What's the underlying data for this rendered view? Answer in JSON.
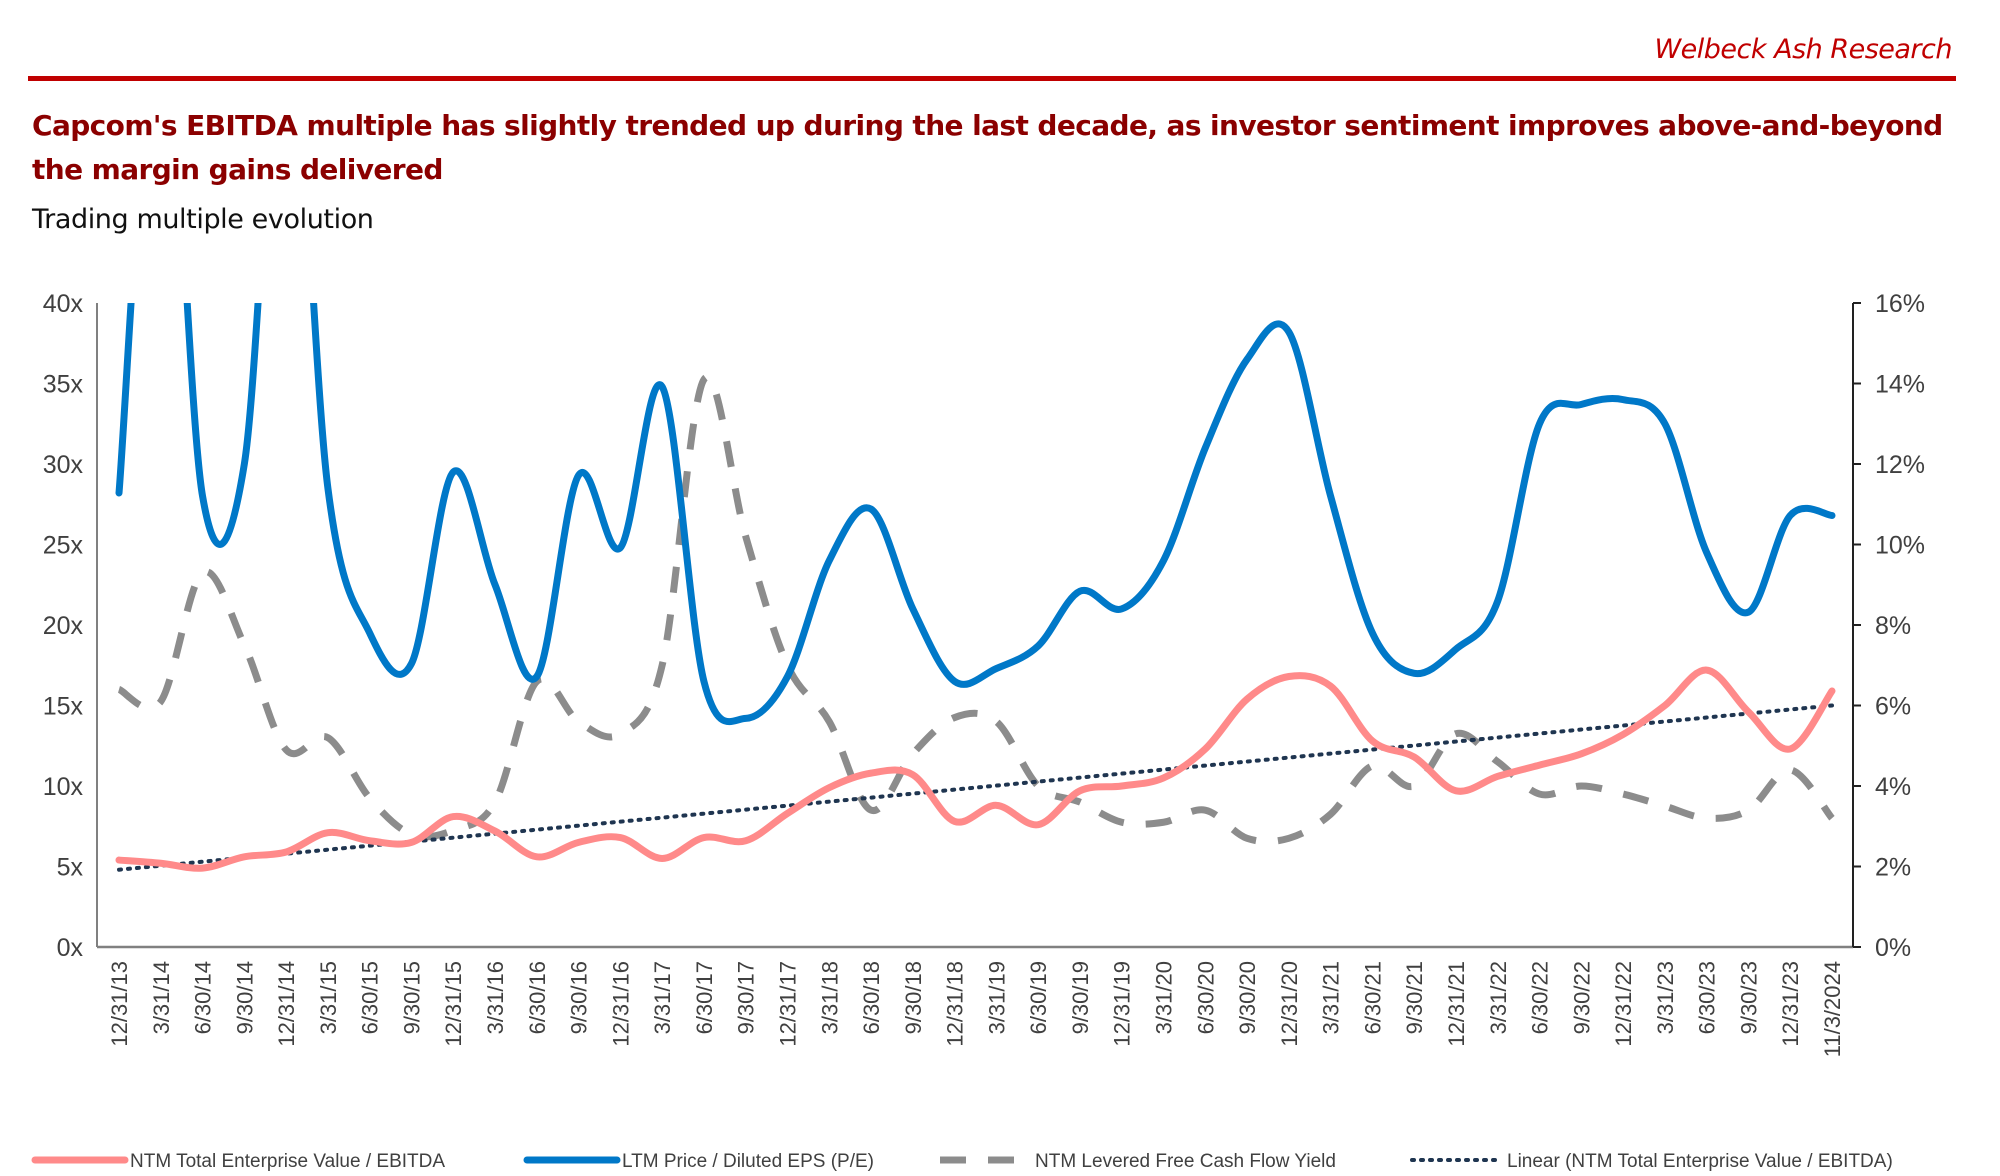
{
  "header": {
    "brand": "Welbeck Ash Research",
    "headline": "Capcom's EBITDA multiple has slightly trended up during the last decade, as investor sentiment improves above-and-beyond the margin gains delivered",
    "subtitle": "Trading multiple evolution"
  },
  "colors": {
    "brand": "#c00000",
    "headline": "#8b0000",
    "ev_ebitda": "#ff8a8a",
    "pe": "#0078c8",
    "fcf_yield": "#8c8c8c",
    "trend": "#1f3550"
  },
  "chart_data": {
    "type": "line",
    "title": "Trading multiple evolution",
    "xlabel": "",
    "ylabel": "",
    "y2label": "",
    "ylim": [
      0,
      40
    ],
    "y2lim": [
      0,
      16
    ],
    "yticks": [
      "0x",
      "5x",
      "10x",
      "15x",
      "20x",
      "25x",
      "30x",
      "35x",
      "40x"
    ],
    "y2ticks": [
      "0%",
      "2%",
      "4%",
      "6%",
      "8%",
      "10%",
      "12%",
      "14%",
      "16%"
    ],
    "grid": false,
    "legend_position": "bottom",
    "categories": [
      "12/31/13",
      "3/31/14",
      "6/30/14",
      "9/30/14",
      "12/31/14",
      "3/31/15",
      "6/30/15",
      "9/30/15",
      "12/31/15",
      "3/31/16",
      "6/30/16",
      "9/30/16",
      "12/31/16",
      "3/31/17",
      "6/30/17",
      "9/30/17",
      "12/31/17",
      "3/31/18",
      "6/30/18",
      "9/30/18",
      "12/31/18",
      "3/31/19",
      "6/30/19",
      "9/30/19",
      "12/31/19",
      "3/31/20",
      "6/30/20",
      "9/30/20",
      "12/31/20",
      "3/31/21",
      "6/30/21",
      "9/30/21",
      "12/31/21",
      "3/31/22",
      "6/30/22",
      "9/30/22",
      "12/31/22",
      "3/31/23",
      "6/30/23",
      "9/30/23",
      "12/31/23",
      "11/3/2024"
    ],
    "series": [
      {
        "name": "NTM Total Enterprise Value / EBITDA",
        "axis": "left",
        "style": "solid",
        "values": [
          5.4,
          5.2,
          4.9,
          5.6,
          5.9,
          7.1,
          6.6,
          6.5,
          8.1,
          7.2,
          5.6,
          6.5,
          6.8,
          5.5,
          6.8,
          6.6,
          8.3,
          9.9,
          10.8,
          10.7,
          7.8,
          8.8,
          7.6,
          9.7,
          10.0,
          10.5,
          12.3,
          15.4,
          16.8,
          16.2,
          12.8,
          11.8,
          9.7,
          10.6,
          11.3,
          12.0,
          13.2,
          15.0,
          17.2,
          14.6,
          12.3,
          15.9
        ]
      },
      {
        "name": "LTM Price / Diluted EPS (P/E)",
        "axis": "left",
        "style": "solid",
        "values": [
          28.2,
          60,
          28.0,
          30,
          60,
          28.5,
          19.5,
          17.6,
          29.5,
          22.5,
          16.8,
          29.3,
          24.8,
          34.8,
          16.5,
          14.2,
          16.8,
          24.0,
          27.2,
          21.0,
          16.5,
          17.3,
          18.7,
          22.1,
          21.0,
          24.0,
          31.0,
          36.5,
          38.2,
          28.0,
          19.5,
          17.0,
          18.5,
          21.5,
          32.5,
          33.7,
          34.0,
          32.5,
          24.5,
          20.8,
          26.8,
          26.8
        ]
      },
      {
        "name": "NTM Levered Free Cash Flow Yield",
        "axis": "right",
        "style": "dashed",
        "values": [
          6.4,
          6.1,
          9.3,
          7.5,
          4.9,
          5.2,
          3.7,
          2.8,
          2.9,
          3.6,
          6.6,
          5.6,
          5.3,
          7.0,
          14.1,
          10.2,
          7.0,
          5.6,
          3.4,
          4.8,
          5.7,
          5.6,
          4.0,
          3.6,
          3.1,
          3.1,
          3.4,
          2.7,
          2.7,
          3.3,
          4.5,
          4.0,
          5.3,
          4.6,
          3.8,
          4.0,
          3.8,
          3.5,
          3.2,
          3.4,
          4.4,
          3.2
        ]
      },
      {
        "name": "Linear (NTM Total Enterprise Value / EBITDA)",
        "axis": "left",
        "style": "dotted",
        "type": "trendline",
        "values": [
          4.8,
          15.0
        ]
      }
    ]
  }
}
